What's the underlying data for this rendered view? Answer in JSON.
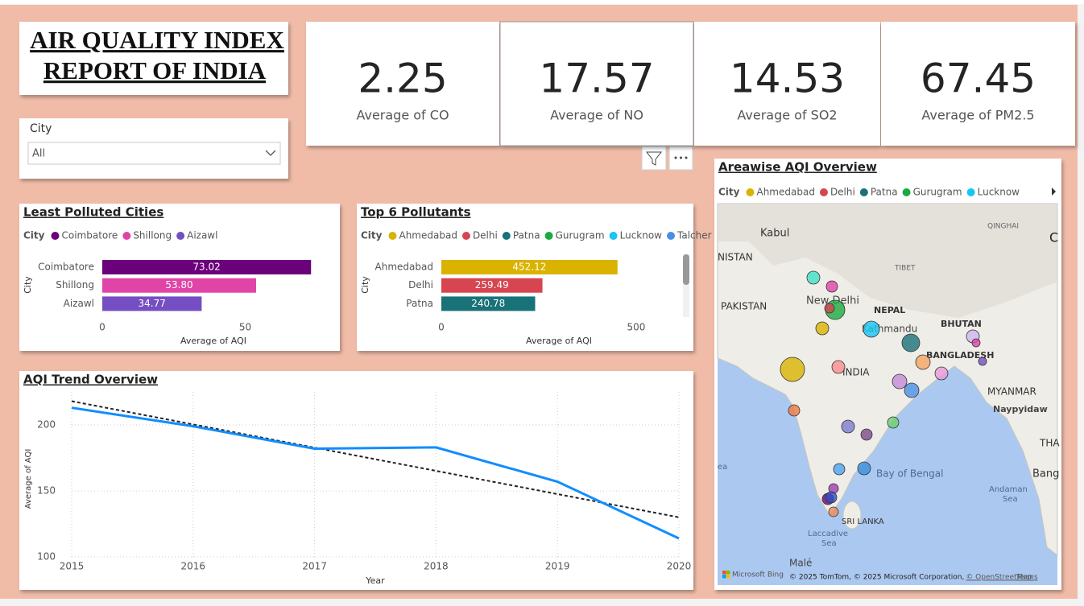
{
  "header": {
    "title_line1": "AIR QUALITY INDEX",
    "title_line2": "REPORT OF INDIA"
  },
  "slicer": {
    "label": "City",
    "value": "All"
  },
  "cards": [
    {
      "value": 2.25,
      "label": "Average of CO"
    },
    {
      "value": 17.57,
      "label": "Average of NO"
    },
    {
      "value": 14.53,
      "label": "Average of SO2"
    },
    {
      "value": 67.45,
      "label": "Average of PM2.5"
    }
  ],
  "chart_data": [
    {
      "type": "bar",
      "title": "Least Polluted Cities",
      "legend_title": "City",
      "legend": [
        {
          "name": "Coimbatore",
          "color": "#6b007b"
        },
        {
          "name": "Shillong",
          "color": "#e044a7"
        },
        {
          "name": "Aizawl",
          "color": "#744ec2"
        }
      ],
      "categories": [
        "Coimbatore",
        "Shillong",
        "Aizawl"
      ],
      "values": [
        73.02,
        53.8,
        34.77
      ],
      "value_labels": [
        "73.02",
        "53.80",
        "34.77"
      ],
      "colors": [
        "#6b007b",
        "#e044a7",
        "#744ec2"
      ],
      "xlim": [
        0,
        80
      ],
      "xticks": [
        0,
        50
      ],
      "xlabel": "Average of AQI",
      "ylabel": "City"
    },
    {
      "type": "bar",
      "title": "Top 6 Pollutants",
      "legend_title": "City",
      "legend": [
        {
          "name": "Ahmedabad",
          "color": "#d9b300"
        },
        {
          "name": "Delhi",
          "color": "#d64550"
        },
        {
          "name": "Patna",
          "color": "#197278"
        },
        {
          "name": "Gurugram",
          "color": "#1aab40"
        },
        {
          "name": "Lucknow",
          "color": "#15c6f4"
        },
        {
          "name": "Talcher",
          "color": "#4a8ee6"
        }
      ],
      "categories": [
        "Ahmedabad",
        "Delhi",
        "Patna"
      ],
      "values": [
        452.12,
        259.49,
        240.78
      ],
      "value_labels": [
        "452.12",
        "259.49",
        "240.78"
      ],
      "colors": [
        "#d9b300",
        "#d64550",
        "#197278"
      ],
      "xlim": [
        0,
        620
      ],
      "xticks": [
        0,
        500
      ],
      "xlabel": "Average of AQI",
      "ylabel": "City"
    },
    {
      "type": "line",
      "title": "AQI Trend Overview",
      "x": [
        2015,
        2016,
        2017,
        2018,
        2019,
        2020
      ],
      "series": [
        {
          "color": "#118dff",
          "values": [
            213,
            199,
            182,
            183,
            157,
            114
          ]
        }
      ],
      "trend": {
        "color": "#222222",
        "values": [
          218,
          200.4,
          182.8,
          165.2,
          147.6,
          130
        ]
      },
      "xlim": [
        2015,
        2020
      ],
      "xticks": [
        2015,
        2016,
        2017,
        2018,
        2019,
        2020
      ],
      "ylim": [
        100,
        225
      ],
      "yticks": [
        100,
        150,
        200
      ],
      "xlabel": "Year",
      "ylabel": "Average of AQI",
      "grid": true
    },
    {
      "type": "map",
      "title": "Areawise AQI Overview",
      "legend_title": "City",
      "legend": [
        {
          "name": "Ahmedabad",
          "color": "#d9b300"
        },
        {
          "name": "Delhi",
          "color": "#d64550"
        },
        {
          "name": "Patna",
          "color": "#197278"
        },
        {
          "name": "Gurugram",
          "color": "#1aab40"
        },
        {
          "name": "Lucknow",
          "color": "#15c6f4"
        }
      ],
      "labels": [
        "Kabul",
        "NISTAN",
        "PAKISTAN",
        "New Delhi",
        "NEPAL",
        "Kathmandu",
        "BHUTAN",
        "BANGLADESH",
        "INDIA",
        "MYANMAR",
        "Naypyidaw",
        "THA",
        "Bay of Bengal",
        "Andaman",
        "Sea",
        "Bang",
        "SRI LANKA",
        "Laccadive",
        "Sea",
        "Malé",
        "QINGHAI",
        "TIBET",
        "C",
        "ea"
      ],
      "brand": "Microsoft Bing",
      "attribution": "© 2025 TomTom, © 2025 Microsoft Corporation,",
      "osm": "© OpenStreetMap",
      "terms": "Terms"
    }
  ]
}
